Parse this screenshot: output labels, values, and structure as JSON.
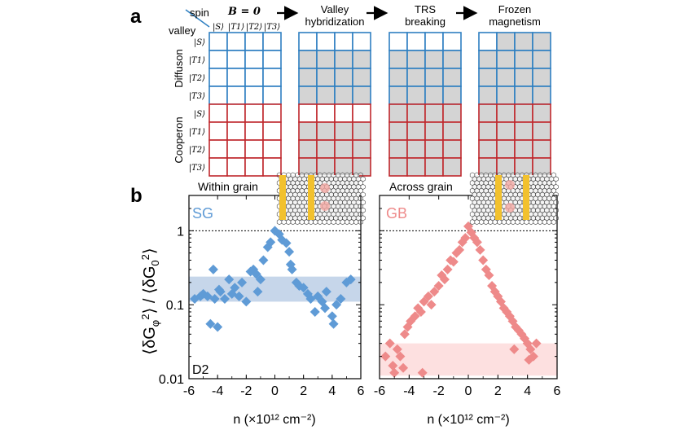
{
  "panel_a": {
    "label": "a",
    "spin_label": "spin",
    "valley_label": "valley",
    "b_label": "B = 0",
    "col_states": [
      "|S⟩",
      "|T1⟩",
      "|T2⟩",
      "|T3⟩"
    ],
    "row_states": [
      "|S⟩",
      "|T1⟩",
      "|T2⟩",
      "|T3⟩"
    ],
    "stage_titles": [
      [
        "Valley",
        "hybridization"
      ],
      [
        "TRS",
        "breaking"
      ],
      [
        "Frozen",
        "magnetism"
      ]
    ],
    "rows": [
      {
        "name": "Diffuson",
        "color": "#2e7fc1",
        "grids": [
          [
            [
              0,
              0,
              0,
              0
            ],
            [
              0,
              0,
              0,
              0
            ],
            [
              0,
              0,
              0,
              0
            ],
            [
              0,
              0,
              0,
              0
            ]
          ],
          [
            [
              0,
              0,
              0,
              0
            ],
            [
              1,
              1,
              1,
              1
            ],
            [
              1,
              1,
              1,
              1
            ],
            [
              1,
              1,
              1,
              1
            ]
          ],
          [
            [
              0,
              0,
              0,
              0
            ],
            [
              1,
              1,
              1,
              1
            ],
            [
              1,
              1,
              1,
              1
            ],
            [
              1,
              1,
              1,
              1
            ]
          ],
          [
            [
              0,
              1,
              1,
              1
            ],
            [
              1,
              1,
              1,
              1
            ],
            [
              1,
              1,
              1,
              1
            ],
            [
              1,
              1,
              1,
              1
            ]
          ]
        ]
      },
      {
        "name": "Cooperon",
        "color": "#c0282d",
        "grids": [
          [
            [
              0,
              0,
              0,
              0
            ],
            [
              0,
              0,
              0,
              0
            ],
            [
              0,
              0,
              0,
              0
            ],
            [
              0,
              0,
              0,
              0
            ]
          ],
          [
            [
              0,
              0,
              0,
              0
            ],
            [
              1,
              1,
              1,
              1
            ],
            [
              1,
              1,
              1,
              1
            ],
            [
              1,
              1,
              1,
              1
            ]
          ],
          [
            [
              1,
              1,
              1,
              1
            ],
            [
              1,
              1,
              1,
              1
            ],
            [
              1,
              1,
              1,
              1
            ],
            [
              1,
              1,
              1,
              1
            ]
          ],
          [
            [
              1,
              1,
              1,
              1
            ],
            [
              1,
              1,
              1,
              1
            ],
            [
              1,
              1,
              1,
              1
            ],
            [
              1,
              1,
              1,
              1
            ]
          ]
        ]
      }
    ]
  },
  "panel_b": {
    "label": "b",
    "ylabel": "⟨δGφ²⟩ / ⟨δG0²⟩",
    "device_label": "D2"
  },
  "chart_data": [
    {
      "type": "scatter",
      "title": "Within grain",
      "legend": "SG",
      "color": "#5f9bd6",
      "band_color": "#c6d6ea",
      "xlabel": "n (×10¹² cm⁻²)",
      "ylabel": "⟨δGφ²⟩ / ⟨δG0²⟩",
      "xlim": [
        -6,
        6
      ],
      "ylim": [
        0.01,
        3
      ],
      "yscale": "log",
      "xticks": [
        -6,
        -4,
        -2,
        0,
        2,
        4,
        6
      ],
      "yticks": [
        0.01,
        0.1,
        1
      ],
      "ytick_labels": [
        "0.01",
        "0.1",
        "1"
      ],
      "reference_line_y": 1,
      "band": [
        0.11,
        0.24
      ],
      "x": [
        -5.6,
        -5.2,
        -5.0,
        -4.7,
        -4.3,
        -4.5,
        -4.0,
        -3.8,
        -3.5,
        -3.2,
        -3.0,
        -2.8,
        -2.5,
        -2.3,
        -2.0,
        -1.7,
        -1.5,
        -1.3,
        -1.0,
        -0.8,
        -0.5,
        -0.3,
        0.0,
        0.3,
        0.5,
        0.8,
        1.0,
        1.2,
        1.5,
        1.7,
        2.0,
        2.3,
        2.5,
        2.8,
        3.0,
        3.3,
        3.6,
        4.0,
        4.3,
        4.6,
        5.0,
        5.3,
        -4.2,
        -3.9,
        3.5,
        4.1,
        -1.2,
        1.1
      ],
      "y": [
        0.12,
        0.13,
        0.14,
        0.13,
        0.3,
        0.055,
        0.05,
        0.15,
        0.12,
        0.22,
        0.14,
        0.17,
        0.13,
        0.2,
        0.11,
        0.28,
        0.3,
        0.26,
        0.22,
        0.4,
        0.6,
        0.7,
        1.0,
        0.9,
        0.75,
        0.68,
        0.52,
        0.3,
        0.2,
        0.18,
        0.17,
        0.14,
        0.12,
        0.08,
        0.13,
        0.11,
        0.15,
        0.07,
        0.1,
        0.12,
        0.2,
        0.22,
        0.12,
        0.16,
        0.09,
        0.055,
        0.15,
        0.35
      ]
    },
    {
      "type": "scatter",
      "title": "Across grain",
      "legend": "GB",
      "color": "#ee8a8a",
      "band_color": "#fde0e0",
      "xlabel": "n (×10¹² cm⁻²)",
      "ylabel": "",
      "xlim": [
        -6,
        6
      ],
      "ylim": [
        0.01,
        3
      ],
      "yscale": "log",
      "xticks": [
        -6,
        -4,
        -2,
        0,
        2,
        4,
        6
      ],
      "yticks": [
        0.01,
        0.1,
        1
      ],
      "reference_line_y": 1,
      "band": [
        0.011,
        0.03
      ],
      "x": [
        -5.6,
        -5.3,
        -5.1,
        -4.8,
        -4.6,
        -4.3,
        -4.1,
        -3.9,
        -3.6,
        -3.4,
        -3.2,
        -3.0,
        -2.7,
        -2.5,
        -2.3,
        -2.0,
        -1.8,
        -1.6,
        -1.4,
        -1.2,
        -1.0,
        -0.8,
        -0.6,
        -0.4,
        -0.2,
        0.0,
        0.2,
        0.4,
        0.6,
        0.8,
        1.0,
        1.2,
        1.4,
        1.6,
        1.8,
        2.0,
        2.2,
        2.4,
        2.6,
        2.8,
        3.0,
        3.2,
        3.4,
        3.6,
        3.8,
        4.0,
        4.2,
        4.4,
        4.6,
        -5.0,
        -4.4,
        -3.1,
        3.1,
        4.1
      ],
      "y": [
        0.02,
        0.03,
        0.015,
        0.025,
        0.02,
        0.04,
        0.05,
        0.06,
        0.07,
        0.09,
        0.08,
        0.11,
        0.13,
        0.1,
        0.15,
        0.18,
        0.25,
        0.22,
        0.3,
        0.4,
        0.38,
        0.5,
        0.55,
        0.7,
        0.8,
        1.15,
        0.95,
        0.8,
        0.7,
        0.55,
        0.4,
        0.3,
        0.25,
        0.18,
        0.15,
        0.13,
        0.11,
        0.09,
        0.08,
        0.07,
        0.06,
        0.05,
        0.045,
        0.04,
        0.035,
        0.03,
        0.025,
        0.02,
        0.03,
        0.012,
        0.014,
        0.012,
        0.025,
        0.018
      ]
    }
  ]
}
